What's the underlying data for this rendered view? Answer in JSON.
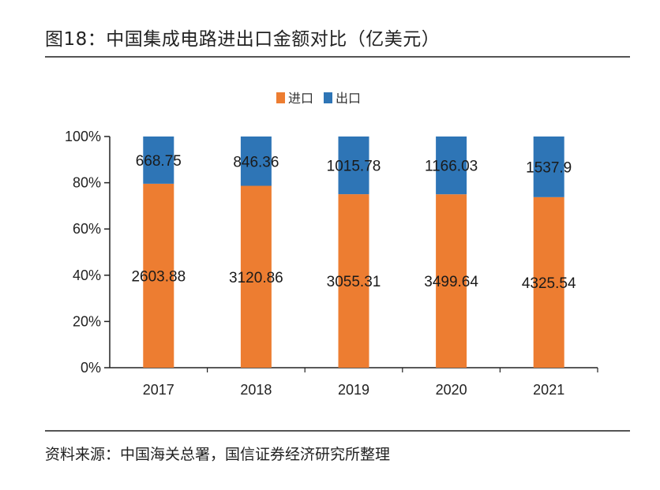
{
  "title": "图18：中国集成电路进出口金额对比（亿美元）",
  "source": "资料来源：中国海关总署，国信证券经济研究所整理",
  "chart_data": {
    "type": "bar",
    "stacked": "percent",
    "categories": [
      "2017",
      "2018",
      "2019",
      "2020",
      "2021"
    ],
    "series": [
      {
        "name": "进口",
        "color": "#ED7D31",
        "values": [
          2603.88,
          3120.86,
          3055.31,
          3499.64,
          4325.54
        ],
        "labels": [
          "2603.88",
          "3120.86",
          "3055.31",
          "3499.64",
          "4325.54"
        ]
      },
      {
        "name": "出口",
        "color": "#2E75B6",
        "values": [
          668.75,
          846.36,
          1015.78,
          1166.03,
          1537.9
        ],
        "labels": [
          "668.75",
          "846.36",
          "1015.78",
          "1166.03",
          "1537.9"
        ]
      }
    ],
    "yticks": [
      "0%",
      "20%",
      "40%",
      "60%",
      "80%",
      "100%"
    ],
    "ylim": [
      0,
      100
    ],
    "legend": "top",
    "grid": false
  }
}
